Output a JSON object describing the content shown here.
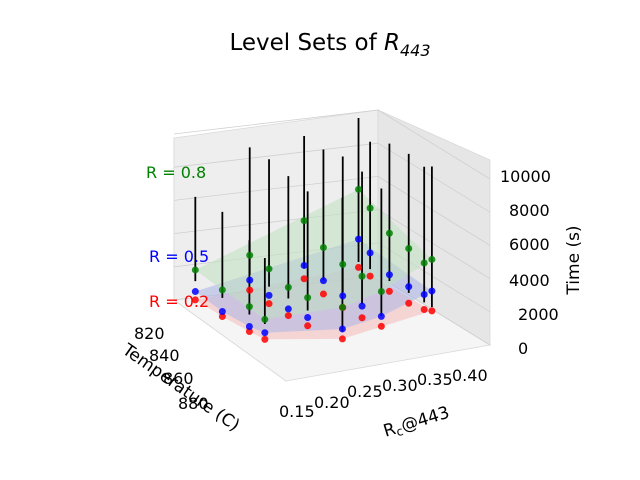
{
  "chart_data": {
    "type": "scatter3d",
    "title": {
      "prefix": "Level Sets of ",
      "symbol": "R",
      "subscript": "443"
    },
    "axes": {
      "x": {
        "label": "Temperature (C)",
        "ticks": [
          "820",
          "840",
          "860",
          "880"
        ],
        "lim": [
          810,
          885
        ]
      },
      "y": {
        "label_main": "R",
        "label_sub": "c",
        "label_suffix": "@443",
        "ticks": [
          "0.15",
          "0.20",
          "0.25",
          "0.30",
          "0.35",
          "0.40"
        ],
        "lim": [
          0.13,
          0.42
        ]
      },
      "z": {
        "label": "Time (s)",
        "ticks": [
          "0",
          "2000",
          "4000",
          "6000",
          "8000",
          "10000"
        ],
        "lim": [
          0,
          10000
        ]
      }
    },
    "levels": [
      {
        "name": "R = 0.2",
        "value": 0.2,
        "color": "#ff0000",
        "fill": "#f4b8b8"
      },
      {
        "name": "R = 0.5",
        "value": 0.5,
        "color": "#0000ff",
        "fill": "#aab4e8"
      },
      {
        "name": "R = 0.8",
        "value": 0.8,
        "color": "#008000",
        "fill": "#bfe0bf"
      }
    ],
    "stems_color": "#000000",
    "points": [
      {
        "T": 820,
        "Rc": 0.15,
        "tmax": 10000,
        "t02": 1000,
        "t05": 2700,
        "t08": 5700
      },
      {
        "T": 820,
        "Rc": 0.18,
        "tmax": 9000,
        "t02": 900,
        "t05": 2300,
        "t08": 5000
      },
      {
        "T": 820,
        "Rc": 0.23,
        "tmax": 9600,
        "t02": 700,
        "t05": 1700,
        "t08": 4200
      },
      {
        "T": 820,
        "Rc": 0.28,
        "tmax": 9700,
        "t02": 700,
        "t05": 1700,
        "t08": 4000
      },
      {
        "T": 820,
        "Rc": 0.32,
        "tmax": 9500,
        "t02": 900,
        "t05": 1800,
        "t08": 3700
      },
      {
        "T": 820,
        "Rc": 0.34,
        "tmax": 9800,
        "t02": 1100,
        "t05": 2300,
        "t08": 4200
      },
      {
        "T": 840,
        "Rc": 0.15,
        "tmax": 9300,
        "t02": 700,
        "t05": 1500,
        "t08": 4200
      },
      {
        "T": 840,
        "Rc": 0.2,
        "tmax": 9200,
        "t02": 500,
        "t05": 1300,
        "t08": 3300
      },
      {
        "T": 840,
        "Rc": 0.25,
        "tmax": 9500,
        "t02": 400,
        "t05": 1100,
        "t08": 3000
      },
      {
        "T": 840,
        "Rc": 0.3,
        "tmax": 9300,
        "t02": 500,
        "t05": 1200,
        "t08": 3000
      },
      {
        "T": 840,
        "Rc": 0.35,
        "tmax": 9000,
        "t02": 700,
        "t05": 1300,
        "t08": 2800
      },
      {
        "T": 860,
        "Rc": 0.15,
        "tmax": 9000,
        "t02": 400,
        "t05": 1000,
        "t08": 2500
      },
      {
        "T": 860,
        "Rc": 0.2,
        "tmax": 9000,
        "t02": 300,
        "t05": 800,
        "t08": 2400
      },
      {
        "T": 860,
        "Rc": 0.25,
        "tmax": 8700,
        "t02": 300,
        "t05": 700,
        "t08": 2000
      },
      {
        "T": 860,
        "Rc": 0.3,
        "tmax": 8500,
        "t02": 400,
        "t05": 900,
        "t08": 2100
      },
      {
        "T": 860,
        "Rc": 0.39,
        "tmax": 9400,
        "t02": 900,
        "t05": 1500,
        "t08": 2800
      },
      {
        "T": 880,
        "Rc": 0.15,
        "tmax": 6400,
        "t02": 200,
        "t05": 700,
        "t08": 2000
      },
      {
        "T": 880,
        "Rc": 0.22,
        "tmax": 6500,
        "t02": 200,
        "t05": 500,
        "t08": 1800
      },
      {
        "T": 880,
        "Rc": 0.29,
        "tmax": 5800,
        "t02": 300,
        "t05": 600,
        "t08": 1800
      },
      {
        "T": 880,
        "Rc": 0.33,
        "tmax": 5300,
        "t02": 400,
        "t05": 800,
        "t08": 1600
      }
    ]
  }
}
